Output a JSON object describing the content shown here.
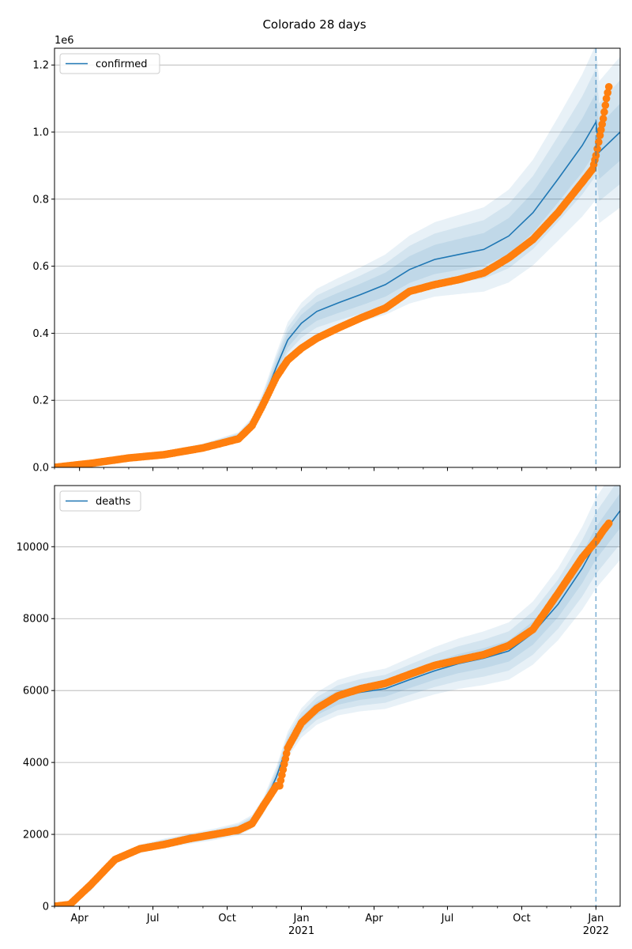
{
  "title": "Colorado 28 days",
  "colors": {
    "model": "#1f77b4",
    "observed": "#ff7f0e",
    "band": "#1f77b4",
    "grid": "#b0b0b0",
    "cutoff": "#1f77b4"
  },
  "x_axis": {
    "start": "2020-03-01",
    "end": "2022-01-31",
    "cutoff": "2022-01-01",
    "ticks": [
      {
        "date": "2020-04-01",
        "label": "Apr",
        "sub": ""
      },
      {
        "date": "2020-07-01",
        "label": "Jul",
        "sub": ""
      },
      {
        "date": "2020-10-01",
        "label": "Oct",
        "sub": ""
      },
      {
        "date": "2021-01-01",
        "label": "Jan",
        "sub": "2021"
      },
      {
        "date": "2021-04-01",
        "label": "Apr",
        "sub": ""
      },
      {
        "date": "2021-07-01",
        "label": "Jul",
        "sub": ""
      },
      {
        "date": "2021-10-01",
        "label": "Oct",
        "sub": ""
      },
      {
        "date": "2022-01-01",
        "label": "Jan",
        "sub": "2022"
      }
    ]
  },
  "chart_data": [
    {
      "type": "line",
      "legend": "confirmed",
      "legend_position": "upper left",
      "grid": "y",
      "ylim": [
        0,
        1250000
      ],
      "y_ticks": [
        0,
        200000,
        400000,
        600000,
        800000,
        1000000,
        1200000
      ],
      "y_tick_labels": [
        "0.0",
        "0.2",
        "0.4",
        "0.6",
        "0.8",
        "1.0",
        "1.2"
      ],
      "y_offset_label": "1e6",
      "model": {
        "x": [
          "2020-03-01",
          "2020-04-15",
          "2020-06-01",
          "2020-07-15",
          "2020-09-01",
          "2020-10-15",
          "2020-11-01",
          "2020-11-15",
          "2020-12-01",
          "2020-12-15",
          "2021-01-01",
          "2021-01-20",
          "2021-02-15",
          "2021-03-15",
          "2021-04-15",
          "2021-05-15",
          "2021-06-15",
          "2021-07-15",
          "2021-08-15",
          "2021-09-15",
          "2021-10-15",
          "2021-11-15",
          "2021-12-15",
          "2022-01-01",
          "2022-01-05",
          "2022-01-31"
        ],
        "y": [
          0,
          15000,
          32000,
          40000,
          60000,
          90000,
          130000,
          200000,
          300000,
          380000,
          430000,
          465000,
          490000,
          515000,
          545000,
          590000,
          620000,
          635000,
          650000,
          690000,
          760000,
          860000,
          960000,
          1030000,
          940000,
          1000000
        ]
      },
      "band_scale": [
        0.08,
        0.15,
        0.22
      ],
      "observed": {
        "x": [
          "2020-03-01",
          "2020-04-15",
          "2020-06-01",
          "2020-07-15",
          "2020-09-01",
          "2020-10-15",
          "2020-11-01",
          "2020-11-15",
          "2020-12-01",
          "2020-12-15",
          "2021-01-01",
          "2021-01-20",
          "2021-02-15",
          "2021-03-15",
          "2021-04-15",
          "2021-05-15",
          "2021-06-15",
          "2021-07-15",
          "2021-08-15",
          "2021-09-15",
          "2021-10-15",
          "2021-11-15",
          "2021-12-15",
          "2021-12-28",
          "2022-01-01",
          "2022-01-06",
          "2022-01-10",
          "2022-01-14",
          "2022-01-17"
        ],
        "y": [
          0,
          12000,
          28000,
          38000,
          58000,
          85000,
          125000,
          190000,
          270000,
          320000,
          355000,
          385000,
          415000,
          445000,
          475000,
          525000,
          545000,
          560000,
          580000,
          625000,
          680000,
          760000,
          850000,
          890000,
          930000,
          990000,
          1040000,
          1100000,
          1135000
        ]
      }
    },
    {
      "type": "line",
      "legend": "deaths",
      "legend_position": "upper left",
      "grid": "y",
      "ylim": [
        0,
        11700
      ],
      "y_ticks": [
        0,
        2000,
        4000,
        6000,
        8000,
        10000
      ],
      "y_tick_labels": [
        "0",
        "2000",
        "4000",
        "6000",
        "8000",
        "10000"
      ],
      "y_offset_label": "",
      "model": {
        "x": [
          "2020-03-01",
          "2020-03-20",
          "2020-04-15",
          "2020-05-15",
          "2020-06-15",
          "2020-07-15",
          "2020-08-15",
          "2020-09-15",
          "2020-10-15",
          "2020-11-01",
          "2020-11-15",
          "2020-12-01",
          "2020-12-15",
          "2021-01-01",
          "2021-01-20",
          "2021-02-15",
          "2021-03-15",
          "2021-04-15",
          "2021-05-15",
          "2021-06-15",
          "2021-07-15",
          "2021-08-15",
          "2021-09-15",
          "2021-10-15",
          "2021-11-15",
          "2021-12-15",
          "2022-01-01",
          "2022-01-31"
        ],
        "y": [
          0,
          50,
          500,
          1300,
          1600,
          1750,
          1880,
          2000,
          2150,
          2350,
          2800,
          3600,
          4500,
          5100,
          5500,
          5800,
          5950,
          6050,
          6300,
          6550,
          6750,
          6900,
          7100,
          7600,
          8400,
          9400,
          10100,
          11000
        ]
      },
      "band_scale": [
        0.04,
        0.08,
        0.12
      ],
      "observed": {
        "x": [
          "2020-03-01",
          "2020-03-20",
          "2020-04-15",
          "2020-05-15",
          "2020-06-15",
          "2020-07-15",
          "2020-08-15",
          "2020-09-15",
          "2020-10-15",
          "2020-11-01",
          "2020-11-15",
          "2020-12-01",
          "2020-12-05",
          "2020-12-15",
          "2021-01-01",
          "2021-01-20",
          "2021-02-15",
          "2021-03-15",
          "2021-04-15",
          "2021-05-15",
          "2021-06-15",
          "2021-07-15",
          "2021-08-15",
          "2021-09-15",
          "2021-10-15",
          "2021-11-15",
          "2021-12-15",
          "2022-01-01",
          "2022-01-10",
          "2022-01-17"
        ],
        "y": [
          0,
          50,
          600,
          1300,
          1600,
          1720,
          1880,
          2000,
          2120,
          2300,
          2800,
          3350,
          3350,
          4400,
          5100,
          5500,
          5850,
          6050,
          6200,
          6450,
          6700,
          6850,
          7000,
          7250,
          7700,
          8700,
          9700,
          10150,
          10450,
          10650
        ]
      }
    }
  ]
}
